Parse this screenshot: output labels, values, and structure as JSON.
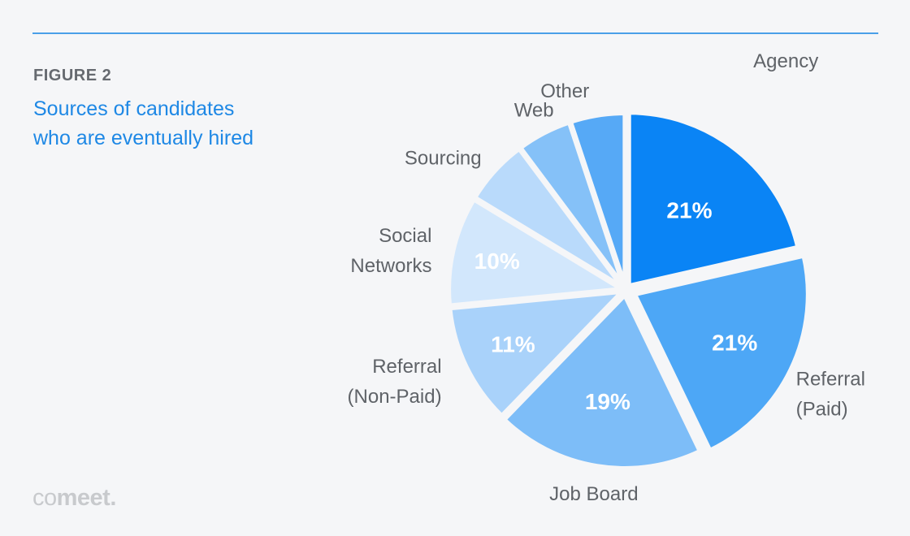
{
  "figure": {
    "label": "FIGURE 2",
    "title_lines": [
      "Sources of candidates",
      "who are eventually hired"
    ]
  },
  "logo": {
    "light": "co",
    "bold": "meet",
    "dot": "."
  },
  "chart_data": {
    "type": "pie",
    "title": "Sources of candidates who are eventually hired",
    "slices": [
      {
        "name": "Agency",
        "label_lines": [
          "Agency"
        ],
        "value": 21,
        "pct_label": "21%",
        "color": "#0a84f5"
      },
      {
        "name": "Referral (Paid)",
        "label_lines": [
          "Referral",
          "(Paid)"
        ],
        "value": 21,
        "pct_label": "21%",
        "color": "#4da7f6"
      },
      {
        "name": "Job Board",
        "label_lines": [
          "Job Board"
        ],
        "value": 19,
        "pct_label": "19%",
        "color": "#7dbdf8"
      },
      {
        "name": "Referral (Non-Paid)",
        "label_lines": [
          "Referral",
          "(Non-Paid)"
        ],
        "value": 11,
        "pct_label": "11%",
        "color": "#a9d2fa"
      },
      {
        "name": "Social Networks",
        "label_lines": [
          "Social",
          "Networks"
        ],
        "value": 10,
        "pct_label": "10%",
        "color": "#d2e7fc"
      },
      {
        "name": "Sourcing",
        "label_lines": [
          "Sourcing"
        ],
        "value": 6,
        "pct_label": "",
        "color": "#b9dafb"
      },
      {
        "name": "Web",
        "label_lines": [
          "Web"
        ],
        "value": 5,
        "pct_label": "",
        "color": "#85c1f8"
      },
      {
        "name": "Other",
        "label_lines": [
          "Other"
        ],
        "value": 5,
        "pct_label": "",
        "color": "#56a9f6"
      }
    ]
  }
}
